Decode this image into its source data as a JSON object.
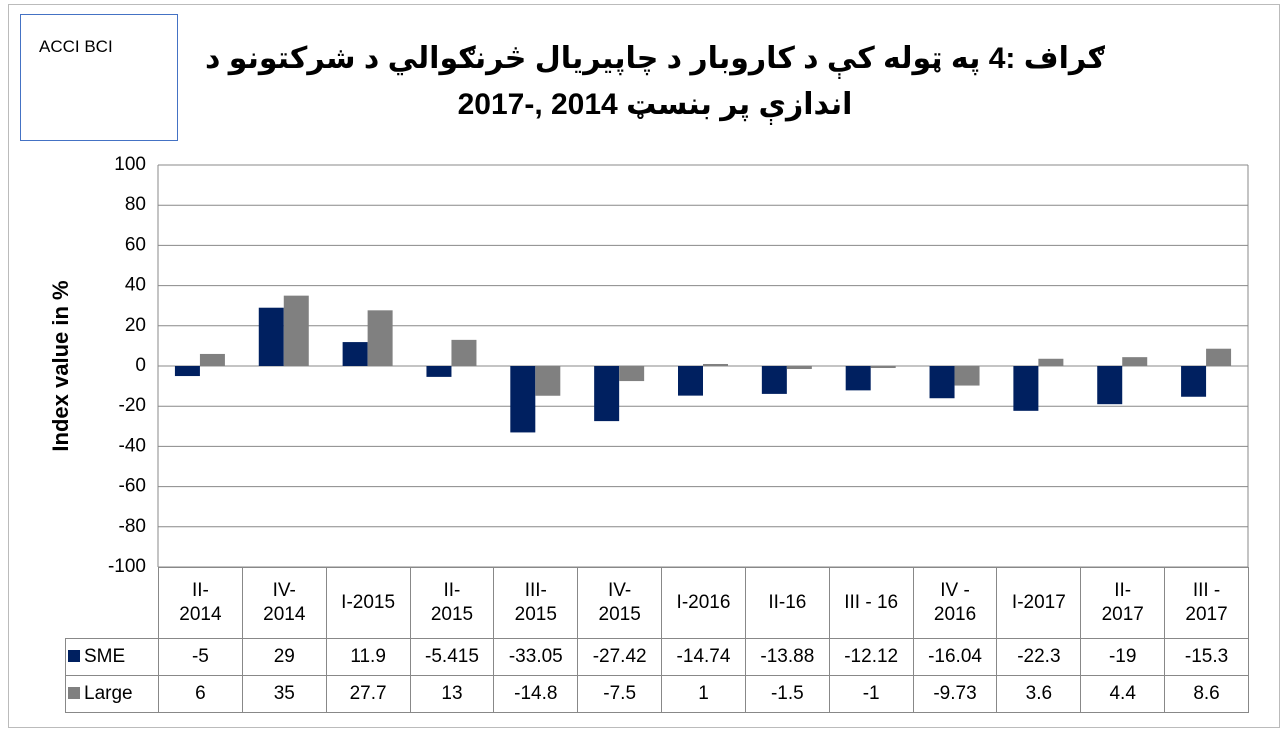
{
  "title": "ګراف :4 په ټوله کې د کاروبار د چاپيريال څرنګوالي د شرکتونو د اندازې پر بنسټ 2014 ,-2017",
  "annotation": "ACCI BCI",
  "chart_data": {
    "type": "bar",
    "ylabel": "Index value in %",
    "categories": [
      "II-\n2014",
      "IV-\n2014",
      "I-2015",
      "II-\n2015",
      "III-\n2015",
      "IV-\n2015",
      "I-2016",
      "II-16",
      "III - 16",
      "IV -\n2016",
      "I-2017",
      "II-\n2017",
      "III -\n2017"
    ],
    "series": [
      {
        "name": "SME",
        "color": "#002060",
        "values": [
          -5,
          29,
          11.9,
          -5.415,
          -33.05,
          -27.42,
          -14.74,
          -13.88,
          -12.12,
          -16.04,
          -22.3,
          -19,
          -15.3
        ]
      },
      {
        "name": "Large",
        "color": "#808080",
        "values": [
          6,
          35,
          27.7,
          13,
          -14.8,
          -7.5,
          1,
          -1.5,
          -1,
          -9.73,
          3.6,
          4.4,
          8.6
        ]
      }
    ],
    "ylim": [
      -100,
      100
    ],
    "yticks": [
      -100,
      -80,
      -60,
      -40,
      -20,
      0,
      20,
      40,
      60,
      80,
      100
    ],
    "grid": true
  }
}
